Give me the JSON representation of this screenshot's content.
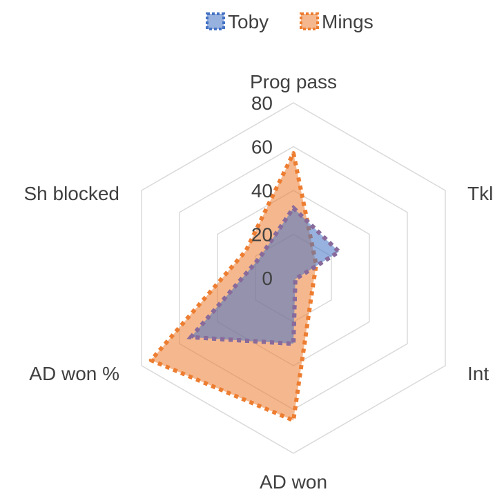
{
  "chart_data": {
    "type": "radar",
    "title": "",
    "categories": [
      "Prog pass",
      "Tkl",
      "Int",
      "AD won",
      "AD won %",
      "Sh blocked"
    ],
    "series": [
      {
        "name": "Toby",
        "values": [
          32,
          24,
          1,
          30,
          54,
          18
        ],
        "color": "#4472C4"
      },
      {
        "name": "Mings",
        "values": [
          57,
          12,
          10,
          65,
          75,
          25
        ],
        "color": "#ED7D31"
      }
    ],
    "ticks": [
      0,
      20,
      40,
      60,
      80
    ],
    "range": [
      0,
      80
    ],
    "legend_position": "top"
  }
}
